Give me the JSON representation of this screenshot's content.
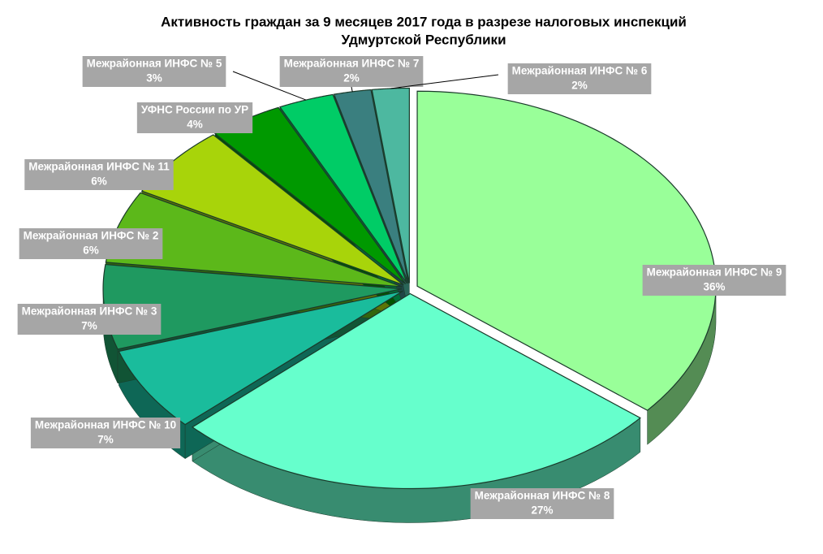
{
  "chart_data": {
    "type": "pie",
    "title": [
      "Активность граждан за 9 месяцев 2017 года в разрезе налоговых инспекций",
      "Удмуртской Республики"
    ],
    "categories": [
      "Межрайонная ИНФС № 9",
      "Межрайонная ИНФС № 8",
      "Межрайонная ИНФС № 10",
      "Межрайонная ИНФС № 3",
      "Межрайонная ИНФС № 2",
      "Межрайонная ИНФС № 11",
      "УФНС России по УР",
      "Межрайонная ИНФС № 5",
      "Межрайонная ИНФС № 7",
      "Межрайонная ИНФС № 6"
    ],
    "values": [
      36,
      27,
      7,
      7,
      6,
      6,
      4,
      3,
      2,
      2
    ],
    "value_labels": [
      "36%",
      "27%",
      "7%",
      "7%",
      "6%",
      "6%",
      "4%",
      "3%",
      "2%",
      "2%"
    ],
    "colors": [
      "#99ff99",
      "#66ffcc",
      "#1abc9c",
      "#1f9960",
      "#5cb81a",
      "#a8d40a",
      "#009900",
      "#00cc66",
      "#3a7f7f",
      "#4db8a0"
    ]
  }
}
